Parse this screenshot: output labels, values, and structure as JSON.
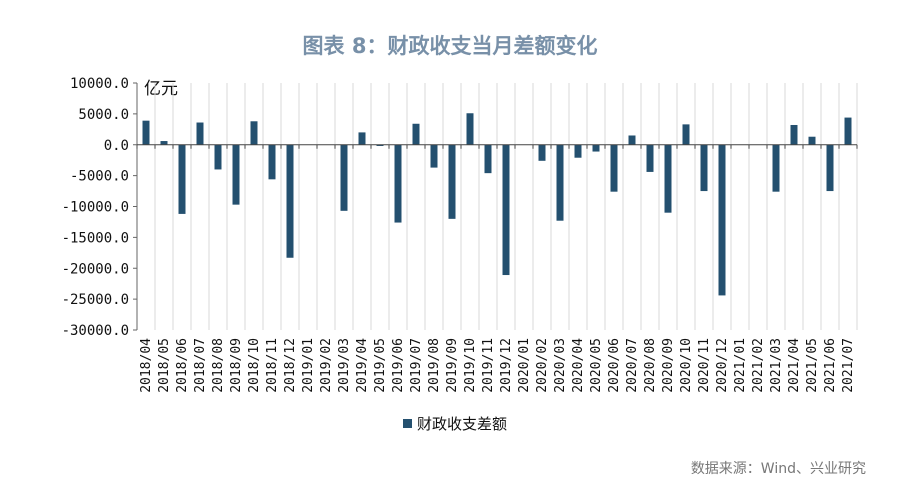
{
  "title": "图表 8：财政收支当月差额变化",
  "source": "数据来源：Wind、兴业研究",
  "chart_data": {
    "type": "bar",
    "title": "图表 8：财政收支当月差额变化",
    "unit": "亿元",
    "ylim": [
      -30000,
      10000
    ],
    "yticks": [
      "10000.0",
      "5000.0",
      "0.0",
      "-5000.0",
      "-10000.0",
      "-15000.0",
      "-20000.0",
      "-25000.0",
      "-30000.0"
    ],
    "ytick_values": [
      10000,
      5000,
      0,
      -5000,
      -10000,
      -15000,
      -20000,
      -25000,
      -30000
    ],
    "grid": "vertical",
    "legend": "bottom",
    "bar_color": "#24506f",
    "categories": [
      "2018/04",
      "2018/05",
      "2018/06",
      "2018/07",
      "2018/08",
      "2018/09",
      "2018/10",
      "2018/11",
      "2018/12",
      "2019/01",
      "2019/02",
      "2019/03",
      "2019/04",
      "2019/05",
      "2019/06",
      "2019/07",
      "2019/08",
      "2019/09",
      "2019/10",
      "2019/11",
      "2019/12",
      "2020/01",
      "2020/02",
      "2020/03",
      "2020/04",
      "2020/05",
      "2020/06",
      "2020/07",
      "2020/08",
      "2020/09",
      "2020/10",
      "2020/11",
      "2020/12",
      "2021/01",
      "2021/02",
      "2021/03",
      "2021/04",
      "2021/05",
      "2021/06",
      "2021/07"
    ],
    "series": [
      {
        "name": "财政收支差额",
        "values": [
          3900,
          600,
          -11200,
          3600,
          -4000,
          -9700,
          3800,
          -5600,
          -18300,
          null,
          null,
          -10700,
          2000,
          -200,
          -12600,
          3400,
          -3700,
          -12000,
          5100,
          -4600,
          -21100,
          null,
          -2600,
          -12300,
          -2100,
          -1100,
          -7600,
          1500,
          -4400,
          -11000,
          3300,
          -7500,
          -24400,
          null,
          null,
          -7600,
          3200,
          1300,
          -7500,
          4400
        ]
      }
    ]
  }
}
